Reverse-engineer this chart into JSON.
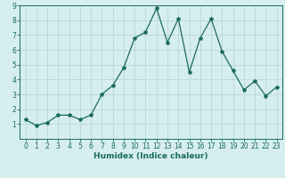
{
  "x": [
    0,
    1,
    2,
    3,
    4,
    5,
    6,
    7,
    8,
    9,
    10,
    11,
    12,
    13,
    14,
    15,
    16,
    17,
    18,
    19,
    20,
    21,
    22,
    23
  ],
  "y": [
    1.3,
    0.9,
    1.1,
    1.6,
    1.6,
    1.3,
    1.6,
    3.0,
    3.6,
    4.8,
    6.8,
    7.2,
    8.8,
    6.5,
    8.1,
    4.5,
    6.8,
    8.1,
    5.9,
    4.6,
    3.3,
    3.9,
    2.9,
    3.5
  ],
  "line_color": "#1a6b5e",
  "marker": "*",
  "marker_size": 3,
  "bg_color": "#d6eeee",
  "grid_color": "#b8d8d8",
  "tick_color": "#1a6b5e",
  "label_color": "#1a6b5e",
  "xlabel": "Humidex (Indice chaleur)",
  "xlim": [
    -0.5,
    23.5
  ],
  "ylim": [
    0,
    9
  ],
  "yticks": [
    1,
    2,
    3,
    4,
    5,
    6,
    7,
    8,
    9
  ],
  "xticks": [
    0,
    1,
    2,
    3,
    4,
    5,
    6,
    7,
    8,
    9,
    10,
    11,
    12,
    13,
    14,
    15,
    16,
    17,
    18,
    19,
    20,
    21,
    22,
    23
  ],
  "xlabel_fontsize": 6.5,
  "tick_fontsize": 5.5,
  "linewidth": 0.9
}
